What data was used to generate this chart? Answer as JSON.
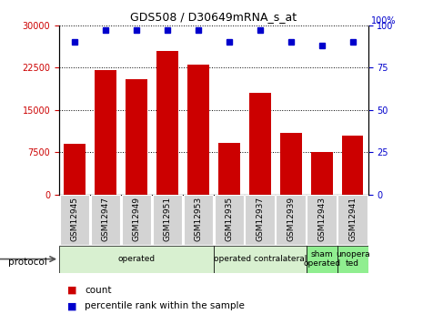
{
  "title": "GDS508 / D30649mRNA_s_at",
  "samples": [
    "GSM12945",
    "GSM12947",
    "GSM12949",
    "GSM12951",
    "GSM12953",
    "GSM12935",
    "GSM12937",
    "GSM12939",
    "GSM12943",
    "GSM12941"
  ],
  "counts": [
    9000,
    22000,
    20500,
    25500,
    23000,
    9200,
    18000,
    11000,
    7500,
    10500
  ],
  "percentiles": [
    90,
    97,
    97,
    97,
    97,
    90,
    97,
    90,
    88,
    90
  ],
  "protocols": [
    {
      "label": "operated",
      "span": 5,
      "color": "#d8f0d0"
    },
    {
      "label": "operated contralateral",
      "span": 3,
      "color": "#d8f0d0"
    },
    {
      "label": "sham\noperated",
      "span": 1,
      "color": "#90ee90"
    },
    {
      "label": "unopera\nted",
      "span": 1,
      "color": "#90ee90"
    }
  ],
  "bar_color": "#cc0000",
  "dot_color": "#0000cc",
  "ylim_left": [
    0,
    30000
  ],
  "yticks_left": [
    0,
    7500,
    15000,
    22500,
    30000
  ],
  "ylim_right": [
    0,
    100
  ],
  "yticks_right": [
    0,
    25,
    50,
    75,
    100
  ],
  "tick_label_color_left": "#cc0000",
  "tick_label_color_right": "#0000cc",
  "xlabel_gray_bg": "#d3d3d3",
  "legend_count_color": "#cc0000",
  "legend_percentile_color": "#0000cc"
}
